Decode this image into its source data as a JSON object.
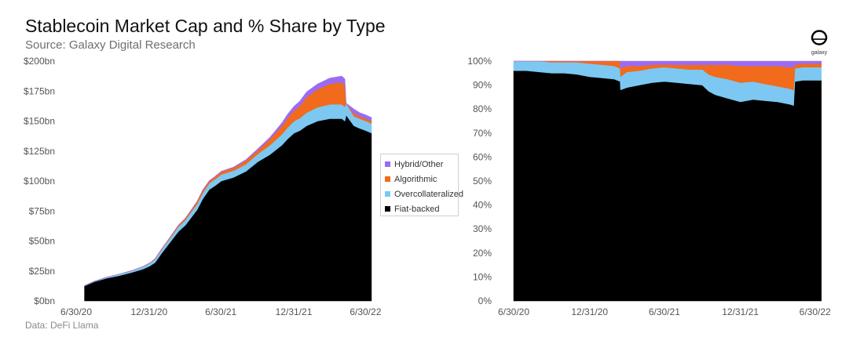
{
  "header": {
    "title": "Stablecoin Market Cap and % Share by Type",
    "subtitle": "Source: Galaxy Digital Research",
    "footer_source": "Data: DeFi Llama",
    "logo_text": "galaxy"
  },
  "legend": {
    "items": [
      {
        "label": "Hybrid/Other",
        "color": "#9b6cf2"
      },
      {
        "label": "Algorithmic",
        "color": "#f26a1b"
      },
      {
        "label": "Overcollateralized",
        "color": "#7cc8f2"
      },
      {
        "label": "Fiat-backed",
        "color": "#000000"
      }
    ]
  },
  "chart_data": [
    {
      "type": "area",
      "stacked": true,
      "x_tick_labels": [
        "6/30/20",
        "12/31/20",
        "6/30/21",
        "12/31/21",
        "6/30/22"
      ],
      "x": [
        "2020-07-21",
        "2020-08-15",
        "2020-09-15",
        "2020-10-15",
        "2020-11-15",
        "2020-12-15",
        "2021-01-01",
        "2021-01-15",
        "2021-02-01",
        "2021-02-15",
        "2021-03-01",
        "2021-03-15",
        "2021-04-01",
        "2021-04-15",
        "2021-05-01",
        "2021-05-15",
        "2021-06-01",
        "2021-06-15",
        "2021-07-01",
        "2021-08-01",
        "2021-09-01",
        "2021-10-01",
        "2021-11-01",
        "2021-12-01",
        "2021-12-15",
        "2022-01-01",
        "2022-01-15",
        "2022-02-01",
        "2022-03-01",
        "2022-04-01",
        "2022-05-01",
        "2022-05-09",
        "2022-05-12",
        "2022-06-01",
        "2022-06-15",
        "2022-07-01",
        "2022-07-15"
      ],
      "series": [
        {
          "name": "Fiat-backed",
          "values": [
            12.5,
            16,
            19,
            21,
            23.5,
            26.5,
            29,
            32,
            40,
            46,
            52,
            58,
            63,
            69,
            76,
            85,
            93,
            96,
            100,
            103,
            108,
            116,
            122,
            130,
            135,
            140,
            142,
            146,
            150,
            152,
            152,
            150,
            155,
            146,
            144,
            142,
            140
          ]
        },
        {
          "name": "Overcollateralized",
          "values": [
            0.3,
            0.5,
            0.8,
            1.2,
            1.5,
            2,
            2.3,
            2.8,
            3,
            3.2,
            3.5,
            4,
            4.3,
            4.5,
            4.8,
            5,
            5.2,
            5.4,
            5.5,
            5.6,
            6,
            6.5,
            8,
            9,
            9.5,
            10,
            10.5,
            11,
            11.5,
            12,
            12,
            12,
            10,
            8,
            8,
            8,
            8
          ]
        },
        {
          "name": "Algorithmic",
          "values": [
            0,
            0,
            0,
            0,
            0.1,
            0.2,
            0.3,
            0.4,
            0.6,
            0.8,
            1,
            1.2,
            1.5,
            1.8,
            2.2,
            2.2,
            2,
            2.1,
            2.3,
            2.5,
            3,
            3.2,
            5,
            7,
            8,
            9,
            10,
            13,
            15,
            17,
            18.5,
            18,
            0,
            2.5,
            2,
            2,
            2
          ]
        },
        {
          "name": "Hybrid/Other",
          "values": [
            0,
            0,
            0,
            0,
            0,
            0,
            0,
            0,
            0,
            0,
            0,
            0,
            0,
            0,
            0,
            0.1,
            0.2,
            0.3,
            0.4,
            0.5,
            0.8,
            1,
            1.5,
            2.5,
            3,
            3.5,
            4,
            4.2,
            4.5,
            4.8,
            5,
            5,
            0,
            3.5,
            3,
            3,
            3
          ]
        }
      ],
      "ylim": [
        0,
        200
      ],
      "y_tick_labels": [
        "$0bn",
        "$25bn",
        "$50bn",
        "$75bn",
        "$100bn",
        "$125bn",
        "$150bn",
        "$175bn",
        "$200bn"
      ],
      "grid": false,
      "legend_position": "right"
    },
    {
      "type": "area",
      "stacked": true,
      "normalized": true,
      "x_tick_labels": [
        "6/30/20",
        "12/31/20",
        "6/30/21",
        "12/31/21",
        "6/30/22"
      ],
      "x": [
        "2020-06-30",
        "2020-07-31",
        "2020-08-31",
        "2020-09-30",
        "2020-10-31",
        "2020-11-30",
        "2020-12-31",
        "2021-01-31",
        "2021-02-28",
        "2021-03-15",
        "2021-03-16",
        "2021-03-31",
        "2021-04-30",
        "2021-05-31",
        "2021-06-30",
        "2021-07-31",
        "2021-08-31",
        "2021-09-30",
        "2021-10-15",
        "2021-10-31",
        "2021-11-30",
        "2021-12-31",
        "2022-01-31",
        "2022-02-28",
        "2022-03-31",
        "2022-04-30",
        "2022-05-09",
        "2022-05-12",
        "2022-05-31",
        "2022-06-30",
        "2022-07-15"
      ],
      "series": [
        {
          "name": "Fiat-backed",
          "values": [
            96,
            96,
            95.5,
            95,
            95,
            94.5,
            93.5,
            93,
            92.5,
            91.5,
            88,
            89,
            90,
            91,
            91.5,
            91,
            90.5,
            90,
            87.5,
            86,
            84.5,
            83,
            84,
            83.5,
            83,
            82,
            81.5,
            91.5,
            92,
            92,
            92
          ]
        },
        {
          "name": "Overcollateralized",
          "values": [
            4,
            4,
            4.5,
            4.5,
            4.5,
            5,
            5.5,
            5.5,
            5.5,
            5.5,
            5.5,
            6.5,
            6,
            6,
            6,
            6,
            6,
            6.5,
            7,
            7.5,
            8,
            8,
            7.5,
            7,
            6.5,
            6.5,
            6.5,
            5.5,
            5.5,
            5.5,
            5.5
          ]
        },
        {
          "name": "Algorithmic",
          "values": [
            0,
            0,
            0,
            0.5,
            0.5,
            0.5,
            1,
            1.5,
            2,
            3,
            3.5,
            2.5,
            2,
            1.5,
            1.2,
            1.5,
            2,
            2,
            4,
            5,
            6,
            7,
            6.5,
            7.5,
            8.5,
            9,
            9.5,
            1.5,
            1.5,
            1.5,
            1.5
          ]
        },
        {
          "name": "Hybrid/Other",
          "values": [
            0,
            0,
            0,
            0,
            0,
            0,
            0,
            0,
            0,
            0,
            3,
            2,
            2,
            1.5,
            1.3,
            1.5,
            1.5,
            1.5,
            1.5,
            1.5,
            1.5,
            2,
            2,
            2,
            2,
            2.5,
            2.5,
            1.5,
            1,
            1,
            1
          ]
        }
      ],
      "ylim": [
        0,
        100
      ],
      "y_tick_labels": [
        "0%",
        "10%",
        "20%",
        "30%",
        "40%",
        "50%",
        "60%",
        "70%",
        "80%",
        "90%",
        "100%"
      ],
      "grid": false
    }
  ]
}
